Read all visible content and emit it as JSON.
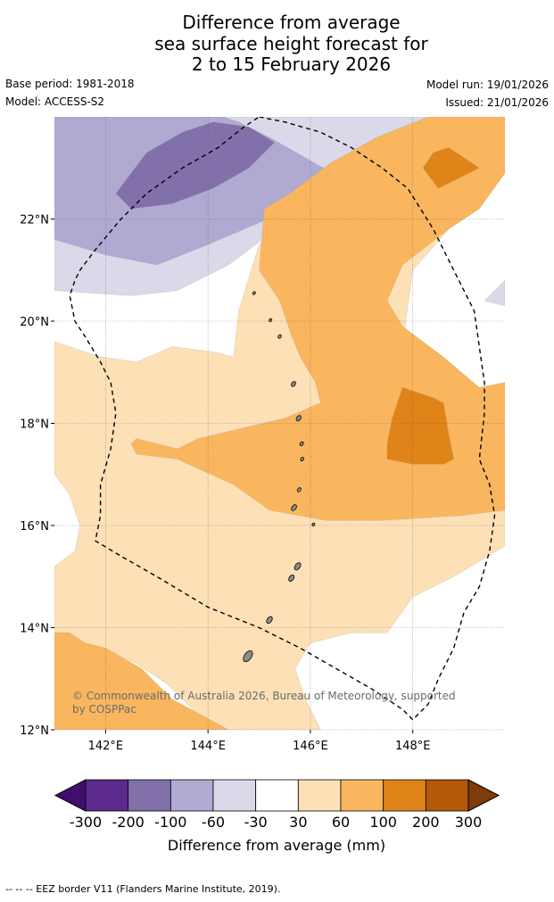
{
  "header": {
    "title_line1": "Difference from average",
    "title_line2": "sea surface height forecast for",
    "title_line3": "2 to 15 February 2026",
    "base_period": "Base period: 1981-2018",
    "model": "Model: ACCESS-S2",
    "model_run": "Model run: 19/01/2026",
    "issued": "Issued: 21/01/2026"
  },
  "chart_data": {
    "type": "contour map",
    "title": "Difference from average sea surface height forecast for 2 to 15 February 2026",
    "x_axis": {
      "range": [
        141,
        149.8
      ],
      "ticks": [
        142,
        144,
        146,
        148
      ],
      "tick_labels": [
        "142°E",
        "144°E",
        "146°E",
        "148°E"
      ]
    },
    "y_axis": {
      "range": [
        12,
        24
      ],
      "ticks": [
        12,
        14,
        16,
        18,
        20,
        22
      ],
      "tick_labels": [
        "12°N",
        "14°N",
        "16°N",
        "18°N",
        "20°N",
        "22°N"
      ]
    },
    "grid": true,
    "levels": [
      -300,
      -200,
      -100,
      -60,
      -30,
      30,
      60,
      100,
      200,
      300
    ],
    "level_labels": [
      "-300",
      "-200",
      "-100",
      "-60",
      "-30",
      "30",
      "60",
      "100",
      "200",
      "300"
    ],
    "bin_colors": [
      "#3f0f70",
      "#5b2a8c",
      "#8270ab",
      "#b0aad2",
      "#d9d9ea",
      "#ffffff",
      "#fde0b6",
      "#f9b65f",
      "#e0841a",
      "#b35908",
      "#7f3b08"
    ],
    "legend_label": "Difference from average (mm)",
    "annotation": "© Commonwealth of Australia 2026, Bureau of Meteorology, supported by COSPPac",
    "regions": [
      {
        "name": "weak-negative-north",
        "range_mm": [
          -60,
          -30
        ],
        "color": "#d9d9ea",
        "points": [
          [
            141,
            23.1
          ],
          [
            141.6,
            23.3
          ],
          [
            141.9,
            23.9
          ],
          [
            142,
            24
          ],
          [
            149.1,
            24
          ],
          [
            148.5,
            23.5
          ],
          [
            147.2,
            23
          ],
          [
            146.4,
            22.6
          ],
          [
            145.9,
            22.3
          ],
          [
            145.2,
            21.7
          ],
          [
            144.4,
            21.1
          ],
          [
            143.4,
            20.6
          ],
          [
            142.5,
            20.5
          ],
          [
            141,
            20.6
          ]
        ]
      },
      {
        "name": "weak-negative-east",
        "range_mm": [
          -60,
          -30
        ],
        "color": "#d9d9ea",
        "points": [
          [
            149.8,
            20.8
          ],
          [
            149.6,
            20.6
          ],
          [
            149.4,
            20.4
          ],
          [
            149.8,
            20.3
          ]
        ]
      },
      {
        "name": "moderate-negative",
        "range_mm": [
          -100,
          -60
        ],
        "color": "#b0aad2",
        "points": [
          [
            141,
            21.6
          ],
          [
            142,
            21.3
          ],
          [
            143,
            21.1
          ],
          [
            144,
            21.5
          ],
          [
            145.4,
            22.1
          ],
          [
            146.1,
            22.5
          ],
          [
            146.6,
            22.8
          ],
          [
            145.9,
            23.2
          ],
          [
            145.2,
            23.6
          ],
          [
            144.6,
            23.9
          ],
          [
            144.3,
            24
          ],
          [
            141,
            24
          ]
        ]
      },
      {
        "name": "strong-negative",
        "range_mm": [
          -200,
          -100
        ],
        "color": "#8270ab",
        "points": [
          [
            142.2,
            22.5
          ],
          [
            142.5,
            22.2
          ],
          [
            143.3,
            22.3
          ],
          [
            144.1,
            22.6
          ],
          [
            144.8,
            23
          ],
          [
            145.3,
            23.5
          ],
          [
            144.8,
            23.8
          ],
          [
            144.1,
            23.9
          ],
          [
            143.5,
            23.7
          ],
          [
            142.8,
            23.3
          ]
        ]
      },
      {
        "name": "weak-positive-main",
        "range_mm": [
          30,
          60
        ],
        "color": "#fde0b6",
        "points": [
          [
            141,
            19.6
          ],
          [
            141.9,
            19.3
          ],
          [
            142.6,
            19.2
          ],
          [
            143.3,
            19.5
          ],
          [
            144.1,
            19.4
          ],
          [
            144.5,
            19.3
          ],
          [
            144.6,
            20.2
          ],
          [
            145,
            21.5
          ],
          [
            145.9,
            22.2
          ],
          [
            147,
            22.9
          ],
          [
            148.1,
            23.6
          ],
          [
            149,
            24
          ],
          [
            149.8,
            24
          ],
          [
            149.8,
            22.9
          ],
          [
            149.5,
            22.5
          ],
          [
            148.7,
            21.8
          ],
          [
            148,
            21
          ],
          [
            147.9,
            20.3
          ],
          [
            147.8,
            19.5
          ],
          [
            148.7,
            19
          ],
          [
            149.3,
            18.7
          ],
          [
            149.8,
            18.8
          ],
          [
            149.8,
            15.6
          ],
          [
            148.8,
            15
          ],
          [
            148,
            14.6
          ],
          [
            147.5,
            13.9
          ],
          [
            146.8,
            13.9
          ],
          [
            146,
            13.7
          ],
          [
            145.7,
            13.2
          ],
          [
            145.9,
            12.6
          ],
          [
            146.2,
            12
          ],
          [
            144.1,
            12
          ],
          [
            143.7,
            12.4
          ],
          [
            143.2,
            12.9
          ],
          [
            142.6,
            13.3
          ],
          [
            141.9,
            13.6
          ],
          [
            141.5,
            13.6
          ],
          [
            141,
            13.7
          ],
          [
            141,
            15.2
          ],
          [
            141.4,
            15.5
          ],
          [
            141.5,
            16
          ],
          [
            141.3,
            16.6
          ],
          [
            141,
            17
          ]
        ]
      },
      {
        "name": "moderate-positive-main",
        "range_mm": [
          60,
          100
        ],
        "color": "#f9b65f",
        "points": [
          [
            142.5,
            17.6
          ],
          [
            142.6,
            17.4
          ],
          [
            143.4,
            17.3
          ],
          [
            144.5,
            16.8
          ],
          [
            145.2,
            16.3
          ],
          [
            146.3,
            16.1
          ],
          [
            147.4,
            16.1
          ],
          [
            149,
            16.2
          ],
          [
            149.8,
            16.3
          ],
          [
            149.8,
            18.8
          ],
          [
            149.3,
            18.7
          ],
          [
            148.6,
            19.3
          ],
          [
            147.8,
            19.9
          ],
          [
            147.5,
            20.4
          ],
          [
            147.8,
            21.1
          ],
          [
            148.7,
            21.8
          ],
          [
            149.3,
            22.2
          ],
          [
            149.8,
            22.9
          ],
          [
            149.8,
            24
          ],
          [
            148.3,
            24
          ],
          [
            147.3,
            23.6
          ],
          [
            146.4,
            23.1
          ],
          [
            145.6,
            22.5
          ],
          [
            145.1,
            22.2
          ],
          [
            145,
            21
          ],
          [
            145.4,
            20.4
          ],
          [
            145.6,
            19.8
          ],
          [
            145.8,
            19.3
          ],
          [
            146.1,
            18.8
          ],
          [
            146.2,
            18.4
          ],
          [
            145.5,
            18.1
          ],
          [
            143.8,
            17.7
          ],
          [
            143.4,
            17.5
          ],
          [
            142.6,
            17.7
          ]
        ]
      },
      {
        "name": "moderate-positive-sw",
        "range_mm": [
          60,
          100
        ],
        "color": "#f9b65f",
        "points": [
          [
            141,
            13.9
          ],
          [
            141.3,
            13.9
          ],
          [
            141.6,
            13.7
          ],
          [
            142,
            13.6
          ],
          [
            142.7,
            13.2
          ],
          [
            143.3,
            12.6
          ],
          [
            144.4,
            12
          ],
          [
            141,
            12
          ]
        ]
      },
      {
        "name": "strong-positive-center",
        "range_mm": [
          100,
          200
        ],
        "color": "#e0841a",
        "points": [
          [
            147.5,
            17.6
          ],
          [
            147.6,
            18.1
          ],
          [
            147.8,
            18.7
          ],
          [
            148.4,
            18.5
          ],
          [
            148.6,
            18.4
          ],
          [
            148.7,
            17.8
          ],
          [
            148.8,
            17.3
          ],
          [
            148.6,
            17.2
          ],
          [
            148,
            17.2
          ],
          [
            147.5,
            17.3
          ]
        ]
      },
      {
        "name": "strong-positive-ne",
        "range_mm": [
          100,
          200
        ],
        "color": "#e0841a",
        "points": [
          [
            148.2,
            23
          ],
          [
            148.4,
            23.3
          ],
          [
            148.7,
            23.4
          ],
          [
            149.3,
            23
          ],
          [
            148.9,
            22.8
          ],
          [
            148.5,
            22.6
          ]
        ]
      }
    ],
    "eez_border": [
      [
        145,
        24
      ],
      [
        145.5,
        23.9
      ],
      [
        146.2,
        23.7
      ],
      [
        146.8,
        23.4
      ],
      [
        147.4,
        23
      ],
      [
        147.9,
        22.6
      ],
      [
        148.4,
        21.8
      ],
      [
        148.8,
        21
      ],
      [
        149.2,
        20.2
      ],
      [
        149.3,
        19.5
      ],
      [
        149.4,
        18.8
      ],
      [
        149.4,
        18.2
      ],
      [
        149.3,
        17.3
      ],
      [
        149.5,
        16.8
      ],
      [
        149.6,
        16.2
      ],
      [
        149.5,
        15.5
      ],
      [
        149.3,
        14.8
      ],
      [
        149,
        14.3
      ],
      [
        148.8,
        13.6
      ],
      [
        148.5,
        13
      ],
      [
        148.3,
        12.5
      ],
      [
        148,
        12.2
      ],
      [
        147.8,
        12.4
      ],
      [
        147.2,
        12.8
      ],
      [
        146.5,
        13.2
      ],
      [
        145.8,
        13.6
      ],
      [
        145,
        14
      ],
      [
        144,
        14.4
      ],
      [
        143,
        15
      ],
      [
        142.3,
        15.4
      ],
      [
        141.8,
        15.7
      ],
      [
        141.9,
        16.2
      ],
      [
        141.9,
        16.8
      ],
      [
        142.1,
        17.5
      ],
      [
        142.2,
        18.2
      ],
      [
        142.1,
        18.8
      ],
      [
        141.9,
        19.2
      ],
      [
        141.6,
        19.7
      ],
      [
        141.4,
        20
      ],
      [
        141.3,
        20.5
      ],
      [
        141.4,
        20.8
      ],
      [
        141.5,
        21
      ],
      [
        141.8,
        21.4
      ],
      [
        142.3,
        22
      ],
      [
        142.8,
        22.5
      ],
      [
        143.5,
        23
      ],
      [
        144.2,
        23.4
      ],
      [
        144.7,
        23.8
      ],
      [
        145,
        24
      ]
    ],
    "islands": [
      {
        "name": "guam",
        "lon": 144.78,
        "lat": 13.44,
        "size": 1.0
      },
      {
        "name": "rota",
        "lon": 145.2,
        "lat": 14.15,
        "size": 0.55
      },
      {
        "name": "tinian",
        "lon": 145.63,
        "lat": 14.97,
        "size": 0.5
      },
      {
        "name": "saipan",
        "lon": 145.75,
        "lat": 15.2,
        "size": 0.6
      },
      {
        "name": "anatahan",
        "lon": 145.68,
        "lat": 16.35,
        "size": 0.45
      },
      {
        "name": "sarigan",
        "lon": 145.78,
        "lat": 16.7,
        "size": 0.25
      },
      {
        "name": "guguan",
        "lon": 145.84,
        "lat": 17.3,
        "size": 0.2
      },
      {
        "name": "alamagan",
        "lon": 145.83,
        "lat": 17.6,
        "size": 0.25
      },
      {
        "name": "pagan",
        "lon": 145.77,
        "lat": 18.1,
        "size": 0.4
      },
      {
        "name": "agrihan",
        "lon": 145.67,
        "lat": 18.77,
        "size": 0.35
      },
      {
        "name": "asuncion",
        "lon": 145.4,
        "lat": 19.7,
        "size": 0.2
      },
      {
        "name": "maug",
        "lon": 145.22,
        "lat": 20.02,
        "size": 0.15
      },
      {
        "name": "farallon-de-pajaros",
        "lon": 144.9,
        "lat": 20.55,
        "size": 0.12
      },
      {
        "name": "farallon-de-medinilla",
        "lon": 146.06,
        "lat": 16.02,
        "size": 0.12
      }
    ]
  },
  "footnote": "--  --  -- EEZ border V11 (Flanders Marine Institute, 2019)."
}
